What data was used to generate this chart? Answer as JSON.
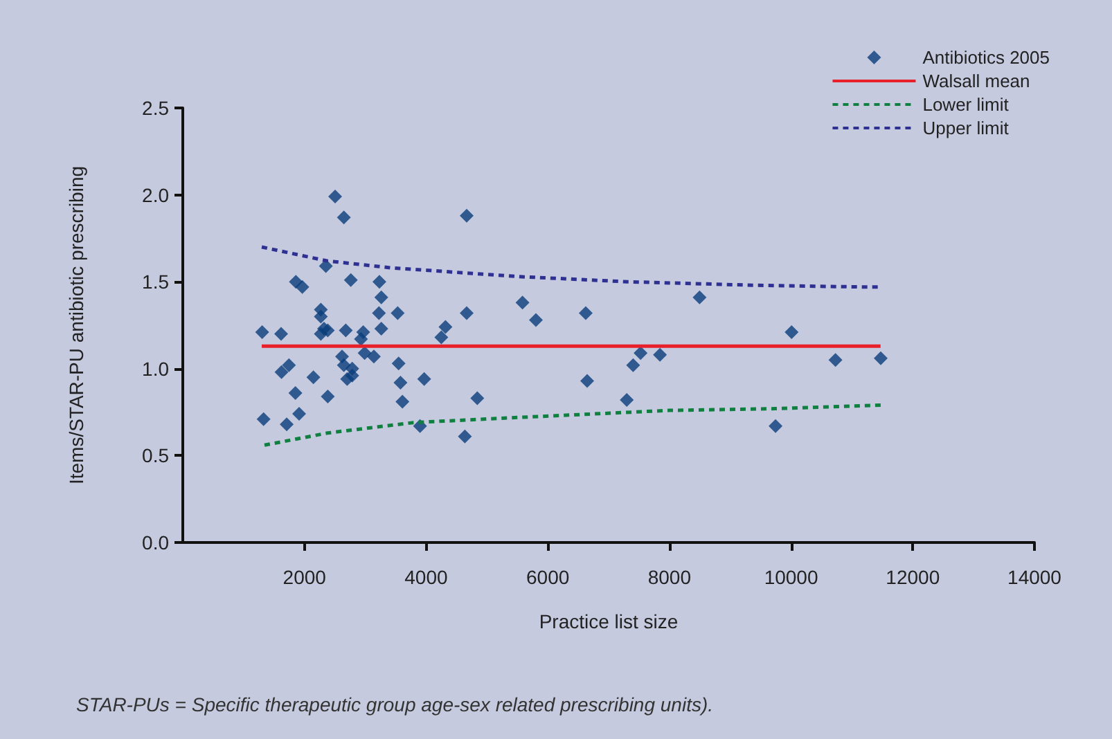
{
  "chart_data": {
    "type": "scatter",
    "xlabel": "Practice list size",
    "ylabel": "Items/STAR-PU antibiotic prescribing",
    "annotations": [
      "STAR-PUs = Specific therapeutic group age-sex related prescribing units)."
    ],
    "xlim": [
      0,
      14000
    ],
    "xticks": [
      2000,
      4000,
      6000,
      8000,
      10000,
      12000,
      14000
    ],
    "ylim": [
      0,
      2.5
    ],
    "yticks": [
      {
        "value": 0,
        "label": "0.0"
      },
      {
        "value": 0.5,
        "label": "0.5"
      },
      {
        "value": 1,
        "label": "1.0"
      },
      {
        "value": 1.5,
        "label": "1.5"
      },
      {
        "value": 2,
        "label": "2.0"
      },
      {
        "value": 2.5,
        "label": "2.5"
      }
    ],
    "grid": false,
    "legend": "top right",
    "series": [
      {
        "name": "Antibiotics 2005",
        "marker": "diamond",
        "color": "#0a3d7a",
        "x": [
          1305,
          1616,
          1328,
          1708,
          1912,
          1851,
          1623,
          1745,
          1859,
          1965,
          2147,
          2269,
          2269,
          2352,
          2383,
          2269,
          2322,
          2383,
          2504,
          2648,
          2762,
          2679,
          2618,
          2648,
          2702,
          2785,
          2785,
          2966,
          2929,
          2989,
          3141,
          3232,
          3263,
          3225,
          3263,
          3532,
          3548,
          3578,
          3610,
          3968,
          3900,
          4318,
          4250,
          4667,
          4667,
          4637,
          4841,
          5584,
          5805,
          6624,
          6647,
          7298,
          7403,
          7525,
          7844,
          8495,
          10008,
          9744,
          10729,
          11473
        ],
        "values": [
          1.21,
          1.2,
          0.71,
          0.68,
          0.74,
          0.86,
          0.98,
          1.02,
          1.5,
          1.47,
          0.95,
          1.34,
          1.3,
          1.59,
          0.84,
          1.2,
          1.23,
          1.22,
          1.99,
          1.87,
          1.51,
          1.22,
          1.07,
          1.02,
          0.94,
          1.0,
          0.96,
          1.21,
          1.17,
          1.09,
          1.07,
          1.5,
          1.41,
          1.32,
          1.23,
          1.32,
          1.03,
          0.92,
          0.81,
          0.94,
          0.67,
          1.24,
          1.18,
          1.88,
          1.32,
          0.61,
          0.83,
          1.38,
          1.28,
          1.32,
          0.93,
          0.82,
          1.02,
          1.09,
          1.08,
          1.41,
          1.21,
          0.67,
          1.05,
          1.06
        ]
      },
      {
        "name": "Walsall mean",
        "type": "line",
        "color": "#e8202a",
        "line_style": "solid",
        "x": [
          1298,
          11470
        ],
        "values": [
          1.13,
          1.13
        ]
      },
      {
        "name": "Lower limit",
        "type": "line",
        "color": "#0f8040",
        "line_style": "dashed",
        "x": [
          1343,
          2383,
          3087,
          3794,
          5554,
          7998,
          9744,
          11473
        ],
        "values": [
          0.56,
          0.63,
          0.66,
          0.69,
          0.72,
          0.76,
          0.77,
          0.79
        ]
      },
      {
        "name": "Upper limit",
        "type": "line",
        "color": "#2e3192",
        "line_style": "dashed",
        "x": [
          1298,
          2370,
          3430,
          5510,
          7310,
          9360,
          11180,
          11470
        ],
        "values": [
          1.7,
          1.62,
          1.58,
          1.53,
          1.5,
          1.48,
          1.47,
          1.47
        ]
      }
    ]
  }
}
